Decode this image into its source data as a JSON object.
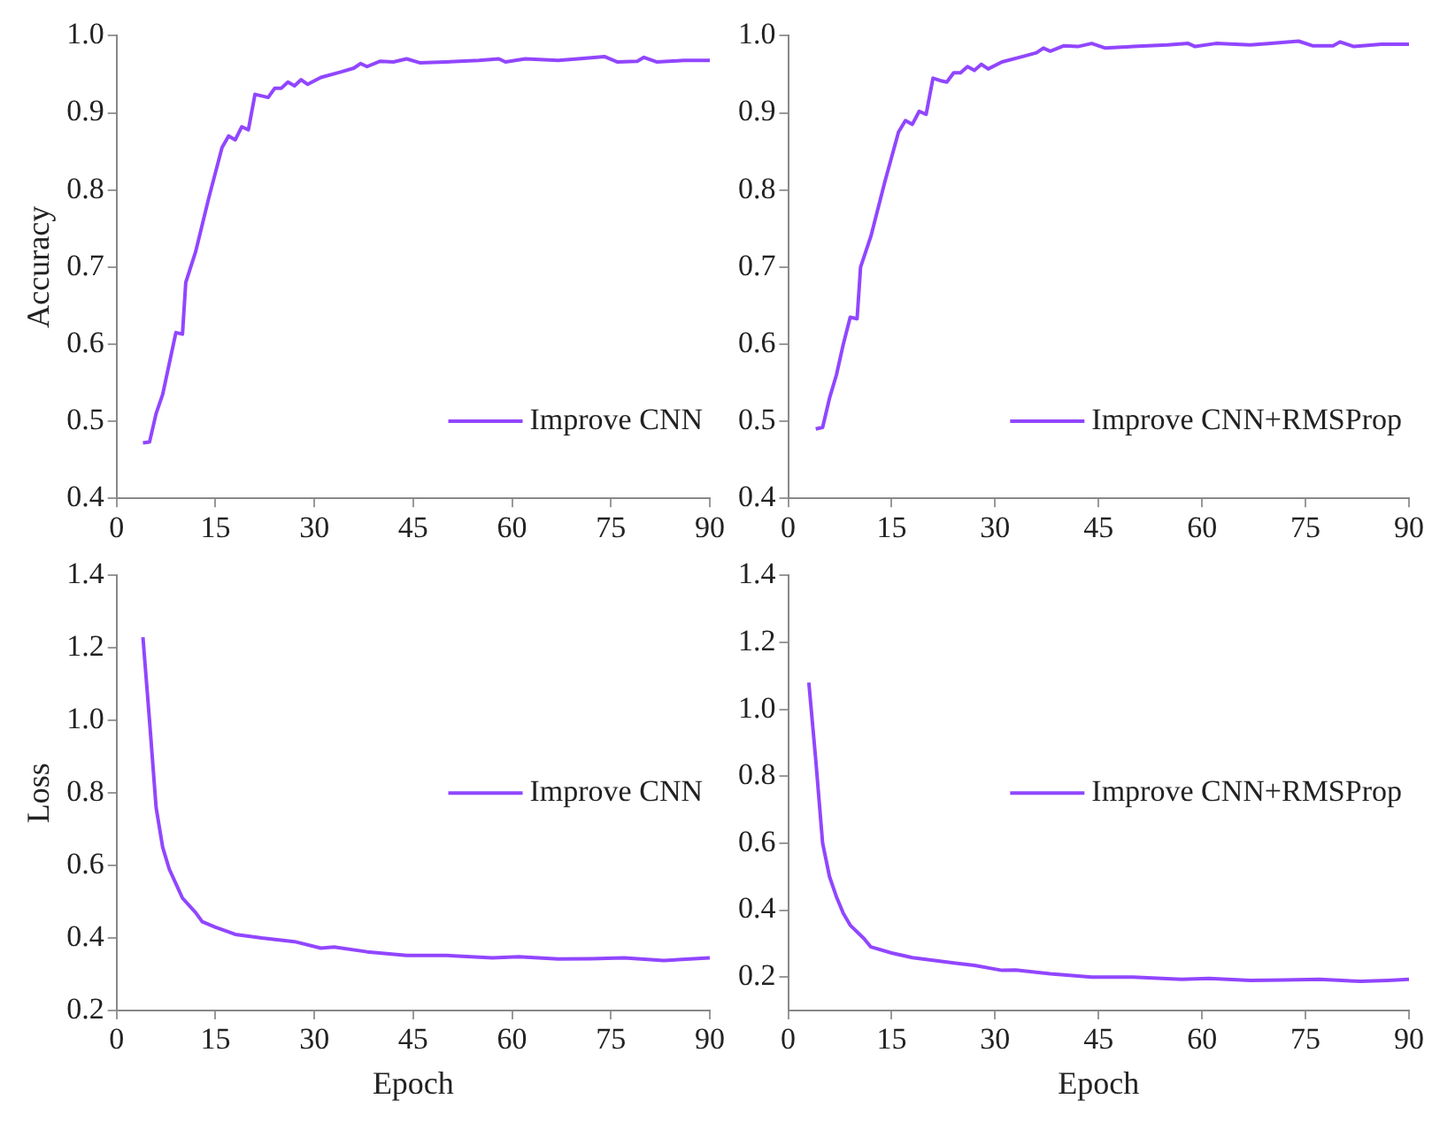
{
  "chart_data": [
    {
      "type": "line",
      "ylabel": "Accuracy",
      "xlim": [
        0,
        90
      ],
      "xticks": [
        0,
        15,
        30,
        45,
        60,
        75,
        90
      ],
      "ylim": [
        0.4,
        1.0
      ],
      "yticks": [
        {
          "value": 0.4,
          "label": "0.4"
        },
        {
          "value": 0.5,
          "label": "0.5"
        },
        {
          "value": 0.6,
          "label": "0.6"
        },
        {
          "value": 0.7,
          "label": "0.7"
        },
        {
          "value": 0.8,
          "label": "0.8"
        },
        {
          "value": 0.9,
          "label": "0.9"
        },
        {
          "value": 1.0,
          "label": "1.0"
        }
      ],
      "legend": "bottom right",
      "marker": "none",
      "line_style": "solid",
      "series": [
        {
          "name": "Improve CNN",
          "color": "#9146ff",
          "x": [
            4,
            5,
            6,
            7,
            8,
            9,
            10,
            10.5,
            12,
            14,
            16,
            17,
            18,
            19,
            20,
            21,
            22,
            23,
            24,
            25,
            26,
            27,
            28,
            29,
            31,
            34,
            36,
            37,
            38,
            40,
            42,
            44,
            46,
            50,
            55,
            58,
            59,
            62,
            67,
            70,
            74,
            76,
            79,
            80,
            82,
            86,
            90
          ],
          "values": [
            0.472,
            0.473,
            0.51,
            0.535,
            0.575,
            0.615,
            0.613,
            0.68,
            0.72,
            0.79,
            0.855,
            0.87,
            0.865,
            0.882,
            0.878,
            0.924,
            0.922,
            0.92,
            0.932,
            0.932,
            0.94,
            0.935,
            0.943,
            0.937,
            0.946,
            0.953,
            0.958,
            0.964,
            0.96,
            0.967,
            0.966,
            0.97,
            0.965,
            0.966,
            0.968,
            0.97,
            0.966,
            0.97,
            0.968,
            0.97,
            0.973,
            0.966,
            0.967,
            0.972,
            0.966,
            0.968,
            0.968
          ]
        }
      ]
    },
    {
      "type": "line",
      "xlim": [
        0,
        90
      ],
      "xticks": [
        0,
        15,
        30,
        45,
        60,
        75,
        90
      ],
      "ylim": [
        0.4,
        1.0
      ],
      "yticks": [
        {
          "value": 0.4,
          "label": "0.4"
        },
        {
          "value": 0.5,
          "label": "0.5"
        },
        {
          "value": 0.6,
          "label": "0.6"
        },
        {
          "value": 0.7,
          "label": "0.7"
        },
        {
          "value": 0.8,
          "label": "0.8"
        },
        {
          "value": 0.9,
          "label": "0.9"
        },
        {
          "value": 1.0,
          "label": "1.0"
        }
      ],
      "legend": "bottom right",
      "marker": "none",
      "line_style": "solid",
      "series": [
        {
          "name": "Improve CNN+RMSProp",
          "color": "#9146ff",
          "x": [
            4,
            5,
            6,
            7,
            8,
            9,
            10,
            10.5,
            12,
            14,
            16,
            17,
            18,
            19,
            20,
            21,
            22,
            23,
            24,
            25,
            26,
            27,
            28,
            29,
            31,
            34,
            36,
            37,
            38,
            40,
            42,
            44,
            46,
            50,
            55,
            58,
            59,
            62,
            67,
            70,
            74,
            76,
            79,
            80,
            82,
            86,
            90
          ],
          "values": [
            0.49,
            0.492,
            0.53,
            0.56,
            0.6,
            0.635,
            0.633,
            0.7,
            0.74,
            0.81,
            0.875,
            0.89,
            0.885,
            0.902,
            0.898,
            0.945,
            0.942,
            0.94,
            0.952,
            0.952,
            0.96,
            0.955,
            0.963,
            0.957,
            0.966,
            0.973,
            0.978,
            0.984,
            0.98,
            0.987,
            0.986,
            0.99,
            0.984,
            0.986,
            0.988,
            0.99,
            0.986,
            0.99,
            0.988,
            0.99,
            0.993,
            0.987,
            0.987,
            0.992,
            0.986,
            0.989,
            0.989
          ]
        }
      ]
    },
    {
      "type": "line",
      "xlabel": "Epoch",
      "ylabel": "Loss",
      "xlim": [
        0,
        90
      ],
      "xticks": [
        0,
        15,
        30,
        45,
        60,
        75,
        90
      ],
      "ylim": [
        0.2,
        1.4
      ],
      "yticks": [
        {
          "value": 0.2,
          "label": "0.2"
        },
        {
          "value": 0.4,
          "label": "0.4"
        },
        {
          "value": 0.6,
          "label": "0.6"
        },
        {
          "value": 0.8,
          "label": "0.8"
        },
        {
          "value": 1.0,
          "label": "1.0"
        },
        {
          "value": 1.2,
          "label": "1.2"
        },
        {
          "value": 1.4,
          "label": "1.4"
        }
      ],
      "legend": "right",
      "marker": "none",
      "line_style": "solid",
      "series": [
        {
          "name": "Improve CNN",
          "color": "#9146ff",
          "x": [
            4,
            5,
            6,
            7,
            8,
            9,
            10,
            12,
            13,
            15,
            18,
            22,
            27,
            31,
            33,
            38,
            44,
            50,
            57,
            61,
            67,
            72,
            77,
            83,
            87,
            90
          ],
          "values": [
            1.23,
            1.0,
            0.76,
            0.65,
            0.59,
            0.55,
            0.51,
            0.47,
            0.445,
            0.43,
            0.41,
            0.4,
            0.39,
            0.372,
            0.375,
            0.362,
            0.352,
            0.352,
            0.345,
            0.348,
            0.342,
            0.343,
            0.345,
            0.338,
            0.342,
            0.345
          ]
        }
      ]
    },
    {
      "type": "line",
      "xlabel": "Epoch",
      "xlim": [
        0,
        90
      ],
      "xticks": [
        0,
        15,
        30,
        45,
        60,
        75,
        90
      ],
      "ylim": [
        0.1,
        1.4
      ],
      "yticks": [
        {
          "value": 0.2,
          "label": "0.2"
        },
        {
          "value": 0.4,
          "label": "0.4"
        },
        {
          "value": 0.6,
          "label": "0.6"
        },
        {
          "value": 0.8,
          "label": "0.8"
        },
        {
          "value": 1.0,
          "label": "1.0"
        },
        {
          "value": 1.2,
          "label": "1.2"
        },
        {
          "value": 1.4,
          "label": "1.4"
        }
      ],
      "legend": "right",
      "marker": "none",
      "line_style": "solid",
      "series": [
        {
          "name": "Improve CNN+RMSProp",
          "color": "#9146ff",
          "x": [
            3,
            4,
            5,
            6,
            7,
            8,
            9,
            11,
            12,
            15,
            18,
            24,
            27,
            31,
            33,
            38,
            44,
            50,
            57,
            61,
            67,
            72,
            77,
            83,
            87,
            90
          ],
          "values": [
            1.08,
            0.85,
            0.6,
            0.5,
            0.44,
            0.39,
            0.355,
            0.315,
            0.29,
            0.272,
            0.258,
            0.242,
            0.235,
            0.22,
            0.221,
            0.21,
            0.2,
            0.2,
            0.193,
            0.196,
            0.19,
            0.191,
            0.193,
            0.187,
            0.19,
            0.193
          ]
        }
      ]
    }
  ]
}
